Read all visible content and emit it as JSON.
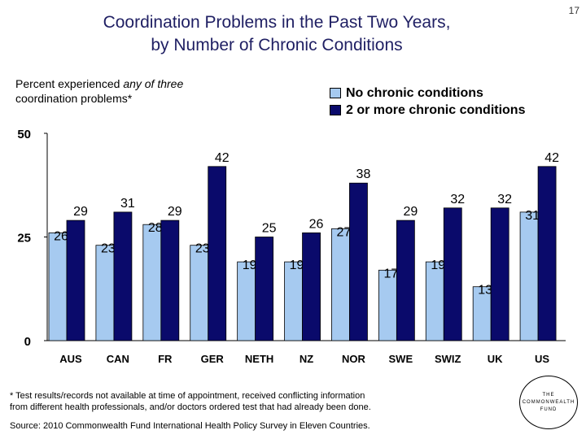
{
  "page_number": "17",
  "title_line1": "Coordination Problems in the Past Two Years,",
  "title_line2": "by Number of Chronic Conditions",
  "subtitle_pre": "Percent experienced ",
  "subtitle_em": "any of three",
  "subtitle_post": "coordination problems*",
  "legend": [
    {
      "label": "No chronic conditions",
      "color": "#a6caf0"
    },
    {
      "label": "2 or more chronic conditions",
      "color": "#0a0a6b"
    }
  ],
  "chart_data": {
    "type": "bar",
    "categories": [
      "AUS",
      "CAN",
      "FR",
      "GER",
      "NETH",
      "NZ",
      "NOR",
      "SWE",
      "SWIZ",
      "UK",
      "US"
    ],
    "series": [
      {
        "name": "No chronic conditions",
        "values": [
          26,
          23,
          28,
          23,
          19,
          19,
          27,
          17,
          19,
          13,
          31
        ],
        "color": "#a6caf0"
      },
      {
        "name": "2 or more chronic conditions",
        "values": [
          29,
          31,
          29,
          42,
          25,
          26,
          38,
          29,
          32,
          32,
          42
        ],
        "color": "#0a0a6b"
      }
    ],
    "yticks": [
      "0",
      "25",
      "50"
    ],
    "ylim": [
      0,
      50
    ],
    "title": "Coordination Problems in the Past Two Years, by Number of Chronic Conditions",
    "ylabel": "Percent experienced any of three coordination problems*"
  },
  "footnote_line1": "* Test results/records not available at time of appointment, received conflicting information",
  "footnote_line2": "from different health professionals, and/or doctors ordered test that had already been done.",
  "source": "Source: 2010 Commonwealth Fund International Health Policy Survey in Eleven Countries.",
  "logo": {
    "line1": "THE",
    "line2": "COMMONWEALTH",
    "line3": "FUND"
  }
}
